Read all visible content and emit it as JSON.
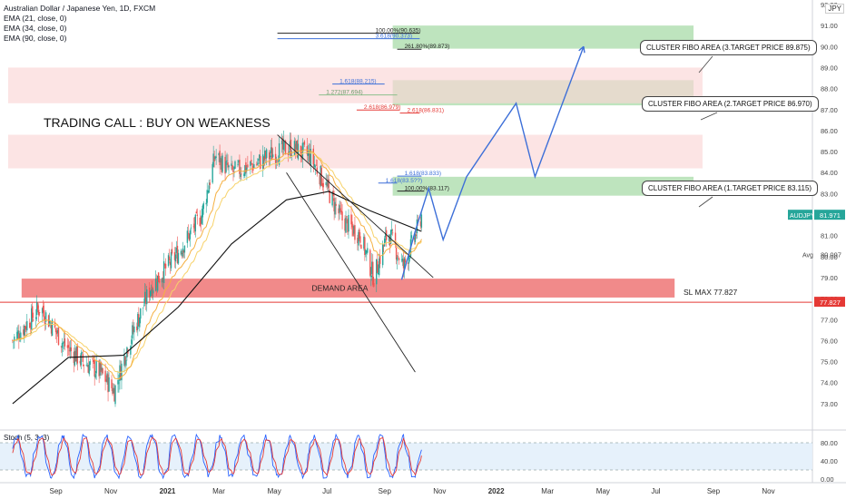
{
  "legend": {
    "title": "Australian Dollar / Japanese Yen, 1D, FXCM",
    "indicators": [
      "EMA (21, close, 0)",
      "EMA (34, close, 0)",
      "EMA (90, close, 0)"
    ]
  },
  "currency_label": "JPY",
  "colors": {
    "up": "#26a69a",
    "down": "#ef5350",
    "ema21": "#f5b041",
    "ema34": "#f7d26a",
    "ema90": "#111111",
    "zone_green": "#a8dba8",
    "zone_pink": "#fbd5d5",
    "demand": "#ef7d7d",
    "path": "#3d6fd8",
    "stoch_k": "#2962ff",
    "stoch_d": "#e53935"
  },
  "chart_data": {
    "type": "candlestick",
    "symbol": "AUDJPY",
    "ylim": [
      72,
      92
    ],
    "yticks": [
      73,
      74,
      75,
      76,
      77,
      78,
      79,
      80,
      81,
      82,
      83,
      84,
      85,
      86,
      87,
      88,
      89,
      90,
      91,
      92
    ],
    "x_ticks": [
      "Sep",
      "Nov",
      "2021",
      "Mar",
      "May",
      "Jul",
      "Sep",
      "Nov",
      "2022",
      "Mar",
      "May",
      "Jul",
      "Sep",
      "Nov"
    ],
    "price_trend": [
      {
        "t": "2020-07-15",
        "v": 76.0
      },
      {
        "t": "2020-08-15",
        "v": 77.6
      },
      {
        "t": "2020-09-10",
        "v": 75.8
      },
      {
        "t": "2020-10-01",
        "v": 75.0
      },
      {
        "t": "2020-10-20",
        "v": 74.5
      },
      {
        "t": "2020-11-05",
        "v": 73.6
      },
      {
        "t": "2020-11-20",
        "v": 75.8
      },
      {
        "t": "2020-12-15",
        "v": 78.5
      },
      {
        "t": "2021-01-15",
        "v": 80.2
      },
      {
        "t": "2021-02-10",
        "v": 82.0
      },
      {
        "t": "2021-02-25",
        "v": 84.8
      },
      {
        "t": "2021-03-15",
        "v": 84.0
      },
      {
        "t": "2021-04-10",
        "v": 84.4
      },
      {
        "t": "2021-04-30",
        "v": 84.9
      },
      {
        "t": "2021-05-20",
        "v": 85.2
      },
      {
        "t": "2021-06-10",
        "v": 84.8
      },
      {
        "t": "2021-06-25",
        "v": 83.6
      },
      {
        "t": "2021-07-15",
        "v": 81.8
      },
      {
        "t": "2021-08-05",
        "v": 81.0
      },
      {
        "t": "2021-08-20",
        "v": 79.0
      },
      {
        "t": "2021-09-05",
        "v": 81.2
      },
      {
        "t": "2021-09-22",
        "v": 79.5
      },
      {
        "t": "2021-10-05",
        "v": 81.0
      },
      {
        "t": "2021-10-12",
        "v": 81.97
      }
    ],
    "ema90_trend": [
      {
        "t": "2020-07-15",
        "v": 73.0
      },
      {
        "t": "2020-09-15",
        "v": 75.2
      },
      {
        "t": "2020-11-15",
        "v": 75.3
      },
      {
        "t": "2021-01-15",
        "v": 77.6
      },
      {
        "t": "2021-03-15",
        "v": 80.6
      },
      {
        "t": "2021-05-15",
        "v": 82.7
      },
      {
        "t": "2021-07-01",
        "v": 83.1
      },
      {
        "t": "2021-08-15",
        "v": 82.2
      },
      {
        "t": "2021-10-12",
        "v": 81.2
      }
    ],
    "projection_path": [
      {
        "t": "2021-09-20",
        "v": 78.9
      },
      {
        "t": "2021-10-05",
        "v": 81.2
      },
      {
        "t": "2021-10-20",
        "v": 83.25
      },
      {
        "t": "2021-11-05",
        "v": 80.8
      },
      {
        "t": "2021-12-01",
        "v": 83.8
      },
      {
        "t": "2022-01-25",
        "v": 87.3
      },
      {
        "t": "2022-02-15",
        "v": 83.8
      },
      {
        "t": "2022-04-10",
        "v": 90.0
      }
    ],
    "channel_upper": [
      {
        "t": "2021-05-05",
        "v": 85.8
      },
      {
        "t": "2021-10-25",
        "v": 79.0
      }
    ],
    "channel_lower": [
      {
        "t": "2021-05-15",
        "v": 84.0
      },
      {
        "t": "2021-10-05",
        "v": 74.5
      }
    ],
    "zones": [
      {
        "kind": "target",
        "from": "2021-09-10",
        "to": "2022-08-10",
        "y1": 89.9,
        "y2": 91.0
      },
      {
        "kind": "target",
        "from": "2021-09-10",
        "to": "2022-08-10",
        "y1": 87.2,
        "y2": 88.4
      },
      {
        "kind": "target",
        "from": "2021-09-10",
        "to": "2022-08-10",
        "y1": 82.9,
        "y2": 83.8
      },
      {
        "kind": "resistance",
        "from": "2020-07-10",
        "to": "2022-08-20",
        "y1": 87.3,
        "y2": 89.0
      },
      {
        "kind": "resistance",
        "from": "2020-07-10",
        "to": "2022-08-20",
        "y1": 84.2,
        "y2": 85.8
      }
    ],
    "fib_levels": [
      {
        "label": "100.00%(90.635)",
        "v": 90.635,
        "from": "2021-05-05",
        "to": "2021-10-10",
        "color": "#222222"
      },
      {
        "label": "3.618(90.373)",
        "v": 90.373,
        "from": "2021-05-05",
        "to": "2021-10-10",
        "color": "#3d6fd8"
      },
      {
        "label": "261.80%(89.873)",
        "v": 89.873,
        "from": "2021-09-15",
        "to": "2021-10-12",
        "color": "#222222"
      },
      {
        "label": "1.618(88.215)",
        "v": 88.215,
        "from": "2021-07-05",
        "to": "2021-09-01",
        "color": "#3d6fd8"
      },
      {
        "label": "1.272(87.694)",
        "v": 87.694,
        "from": "2021-06-20",
        "to": "2021-09-15",
        "color": "#8dbf8d"
      },
      {
        "label": "2.618(86.979)",
        "v": 86.979,
        "from": "2021-08-01",
        "to": "2021-09-18",
        "color": "#e53935"
      },
      {
        "label": "2.618(86.831)",
        "v": 86.831,
        "from": "2021-09-18",
        "to": "2021-10-10",
        "color": "#e53935"
      },
      {
        "label": "1.618(83.833)",
        "v": 83.833,
        "from": "2021-09-15",
        "to": "2021-10-12",
        "color": "#3d6fd8"
      },
      {
        "label": "1.618(83.5??)",
        "v": 83.5,
        "from": "2021-08-25",
        "to": "2021-09-15",
        "color": "#3d6fd8"
      },
      {
        "label": "100.00%(83.117)",
        "v": 83.117,
        "from": "2021-09-15",
        "to": "2021-10-15",
        "color": "#222222"
      }
    ],
    "demand_area": {
      "label": "DEMAND AREA",
      "from": "2020-07-25",
      "to": "2022-07-20",
      "y1": 78.05,
      "y2": 78.95
    },
    "stop_loss": {
      "label": "SL MAX 77.827",
      "v": 77.827
    },
    "current_price": {
      "symbol": "AUDJPY",
      "value": "81.971",
      "v": 81.971
    },
    "avg": {
      "label": "Avg",
      "value": "80.097",
      "v": 80.097
    },
    "sl_tag": "77.827",
    "annotation": "TRADING CALL : BUY ON WEAKNESS",
    "callouts": [
      {
        "text": "CLUSTER FIBO AREA (3.TARGET PRICE 89.875)"
      },
      {
        "text": "CLUSTER FIBO AREA (2.TARGET PRICE 86.970)"
      },
      {
        "text": "CLUSTER FIBO AREA (1.TARGET PRICE  83.115)"
      }
    ],
    "stoch": {
      "label": "Stoch (5, 3, 3)",
      "ylim": [
        0,
        100
      ],
      "yticks": [
        "80.00",
        "40.00",
        "0.00"
      ],
      "band": [
        20,
        80
      ]
    }
  }
}
